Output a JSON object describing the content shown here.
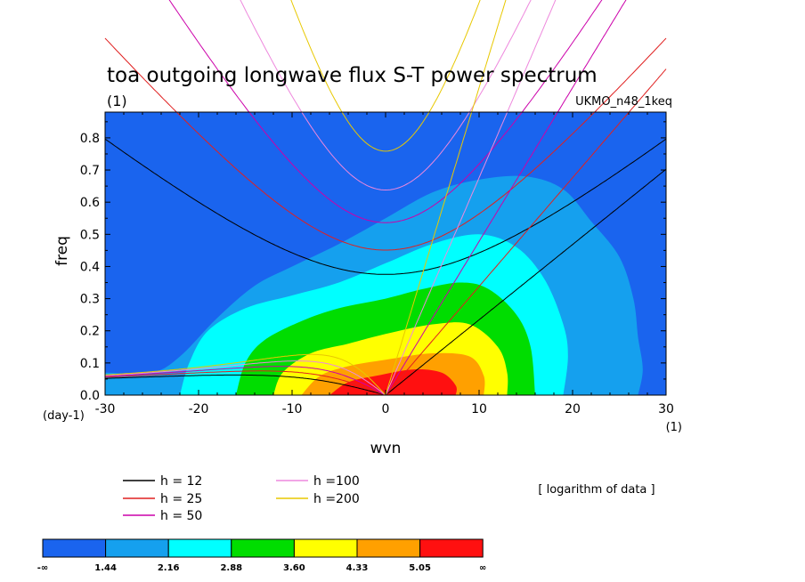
{
  "chart_data": {
    "type": "heatmap",
    "title": "toa outgoing longwave flux S-T power spectrum",
    "units_label": "(1)",
    "dataset": "UKMO_n48_1keq",
    "xlabel": "wvn",
    "ylabel": "freq",
    "x_units": "(1)",
    "y_units": "(day-1)",
    "xlim": [
      -30,
      30
    ],
    "ylim": [
      0,
      0.88
    ],
    "x_ticks": [
      "-30",
      "-20",
      "-10",
      "0",
      "10",
      "20",
      "30"
    ],
    "x_tick_values": [
      -30,
      -20,
      -10,
      0,
      10,
      20,
      30
    ],
    "y_ticks": [
      "0.0",
      "0.1",
      "0.2",
      "0.3",
      "0.4",
      "0.5",
      "0.6",
      "0.7",
      "0.8"
    ],
    "y_tick_values": [
      0,
      0.1,
      0.2,
      0.3,
      0.4,
      0.5,
      0.6,
      0.7,
      0.8
    ],
    "note": "[ logarithm of data ]",
    "colorbar": {
      "levels": [
        "-∞",
        "1.44",
        "2.16",
        "2.88",
        "3.60",
        "4.33",
        "5.05",
        "∞"
      ],
      "colors": [
        "#1a64ee",
        "#15a0ee",
        "#00ffff",
        "#00dd00",
        "#ffff00",
        "#ffa000",
        "#ff1010"
      ]
    },
    "contours": [
      {
        "level": 1.44,
        "points": [
          [
            -30,
            0.07
          ],
          [
            -25,
            0.07
          ],
          [
            -22,
            0.12
          ],
          [
            -18,
            0.24
          ],
          [
            -14,
            0.34
          ],
          [
            -10,
            0.4
          ],
          [
            -5,
            0.47
          ],
          [
            0,
            0.55
          ],
          [
            5,
            0.63
          ],
          [
            10,
            0.67
          ],
          [
            15,
            0.68
          ],
          [
            19,
            0.64
          ],
          [
            22,
            0.54
          ],
          [
            25,
            0.43
          ],
          [
            26.5,
            0.3
          ],
          [
            27,
            0.18
          ],
          [
            27.5,
            0.08
          ],
          [
            27,
            0
          ]
        ]
      },
      {
        "level": 2.16,
        "points": [
          [
            -22,
            0
          ],
          [
            -21,
            0.1
          ],
          [
            -19,
            0.2
          ],
          [
            -15,
            0.27
          ],
          [
            -10,
            0.31
          ],
          [
            -5,
            0.35
          ],
          [
            0,
            0.41
          ],
          [
            5,
            0.47
          ],
          [
            10,
            0.5
          ],
          [
            14,
            0.46
          ],
          [
            17,
            0.36
          ],
          [
            19,
            0.22
          ],
          [
            19.5,
            0.12
          ],
          [
            19,
            0
          ]
        ]
      },
      {
        "level": 2.88,
        "points": [
          [
            -16,
            0
          ],
          [
            -15,
            0.1
          ],
          [
            -13,
            0.17
          ],
          [
            -9,
            0.23
          ],
          [
            -5,
            0.27
          ],
          [
            0,
            0.3
          ],
          [
            4,
            0.33
          ],
          [
            8,
            0.35
          ],
          [
            11,
            0.33
          ],
          [
            14,
            0.25
          ],
          [
            15.5,
            0.15
          ],
          [
            16,
            0
          ]
        ]
      },
      {
        "level": 3.6,
        "points": [
          [
            -12,
            0
          ],
          [
            -11,
            0.07
          ],
          [
            -8,
            0.13
          ],
          [
            -4,
            0.16
          ],
          [
            0,
            0.19
          ],
          [
            5,
            0.22
          ],
          [
            9,
            0.22
          ],
          [
            12,
            0.15
          ],
          [
            13,
            0.07
          ],
          [
            13,
            0
          ]
        ]
      },
      {
        "level": 4.33,
        "points": [
          [
            -9,
            0
          ],
          [
            -7,
            0.06
          ],
          [
            -4,
            0.09
          ],
          [
            0,
            0.11
          ],
          [
            5,
            0.13
          ],
          [
            9,
            0.12
          ],
          [
            10.5,
            0.06
          ],
          [
            10.5,
            0
          ]
        ]
      },
      {
        "level": 5.05,
        "points": [
          [
            -6,
            0
          ],
          [
            -4,
            0.04
          ],
          [
            -1,
            0.06
          ],
          [
            3,
            0.08
          ],
          [
            6,
            0.07
          ],
          [
            7.5,
            0.03
          ],
          [
            7.5,
            0
          ]
        ]
      }
    ],
    "series": [
      {
        "name": "h = 12",
        "color": "#000000"
      },
      {
        "name": "h = 25",
        "color": "#e02020"
      },
      {
        "name": "h = 50",
        "color": "#cc00aa"
      },
      {
        "name": "h =100",
        "color": "#ee88dd"
      },
      {
        "name": "h =200",
        "color": "#e8c800"
      }
    ],
    "equivalent_depths_m": [
      12,
      25,
      50,
      100,
      200
    ]
  }
}
